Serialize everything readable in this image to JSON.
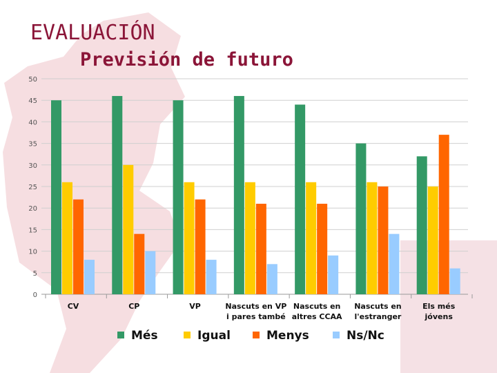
{
  "slide": {
    "title": "EVALUACIÓN",
    "subtitle": "Previsión de futuro"
  },
  "colors": {
    "title": "#8b1538",
    "Més": "#339966",
    "Igual": "#ffcc00",
    "Menys": "#ff6600",
    "Ns/Nc": "#99ccff"
  },
  "chart_data": {
    "type": "bar",
    "title": "",
    "xlabel": "",
    "ylabel": "",
    "ylim": [
      0,
      50
    ],
    "yticks": [
      0,
      5,
      10,
      15,
      20,
      25,
      30,
      35,
      40,
      45,
      50
    ],
    "grid": true,
    "legend_position": "bottom",
    "categories": [
      [
        "CV"
      ],
      [
        "CP"
      ],
      [
        "VP"
      ],
      [
        "Nascuts en VP",
        "i pares també"
      ],
      [
        "Nascuts en",
        "altres CCAA"
      ],
      [
        "Nascuts en",
        "l'estranger"
      ],
      [
        "Els més",
        "jóvens"
      ]
    ],
    "series": [
      {
        "name": "Més",
        "values": [
          45,
          46,
          45,
          46,
          44,
          35,
          32
        ]
      },
      {
        "name": "Igual",
        "values": [
          26,
          30,
          26,
          26,
          26,
          26,
          25
        ]
      },
      {
        "name": "Menys",
        "values": [
          22,
          14,
          22,
          21,
          21,
          25,
          37
        ]
      },
      {
        "name": "Ns/Nc",
        "values": [
          8,
          10,
          8,
          7,
          9,
          14,
          6
        ]
      }
    ]
  }
}
